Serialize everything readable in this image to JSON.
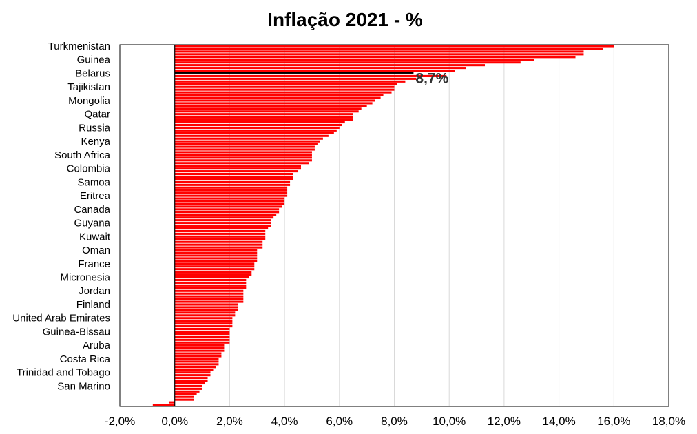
{
  "chart_data": {
    "type": "bar",
    "orientation": "horizontal",
    "title": "Inflação 2021 - %",
    "xlim": [
      -2,
      18
    ],
    "x_ticks": [
      -2,
      0,
      2,
      4,
      6,
      8,
      10,
      12,
      14,
      16,
      18
    ],
    "x_tick_labels": [
      "-2,0%",
      "0,0%",
      "2,0%",
      "4,0%",
      "6,0%",
      "8,0%",
      "10,0%",
      "12,0%",
      "14,0%",
      "16,0%",
      "18,0%"
    ],
    "grid": "vertical",
    "bar_color": "#ff0000",
    "highlight_color": "#000000",
    "highlight_index": 10,
    "annotation": {
      "text": "8,7%",
      "value": 8.7,
      "row_index": 10
    },
    "visible_labels": [
      {
        "index": 0,
        "label": "Turkmenistan"
      },
      {
        "index": 5,
        "label": "Guinea"
      },
      {
        "index": 10,
        "label": "Belarus"
      },
      {
        "index": 15,
        "label": "Tajikistan"
      },
      {
        "index": 20,
        "label": "Mongolia"
      },
      {
        "index": 25,
        "label": "Qatar"
      },
      {
        "index": 30,
        "label": "Russia"
      },
      {
        "index": 35,
        "label": "Kenya"
      },
      {
        "index": 40,
        "label": "South Africa"
      },
      {
        "index": 45,
        "label": "Colombia"
      },
      {
        "index": 50,
        "label": "Samoa"
      },
      {
        "index": 55,
        "label": "Eritrea"
      },
      {
        "index": 60,
        "label": "Canada"
      },
      {
        "index": 65,
        "label": "Guyana"
      },
      {
        "index": 70,
        "label": "Kuwait"
      },
      {
        "index": 75,
        "label": "Oman"
      },
      {
        "index": 80,
        "label": "France"
      },
      {
        "index": 85,
        "label": "Micronesia"
      },
      {
        "index": 90,
        "label": "Jordan"
      },
      {
        "index": 95,
        "label": "Finland"
      },
      {
        "index": 100,
        "label": "United Arab Emirates"
      },
      {
        "index": 105,
        "label": "Guinea-Bissau"
      },
      {
        "index": 110,
        "label": "Aruba"
      },
      {
        "index": 115,
        "label": "Costa Rica"
      },
      {
        "index": 120,
        "label": "Trinidad and Tobago"
      },
      {
        "index": 125,
        "label": "San Marino"
      }
    ],
    "values": [
      16.0,
      15.6,
      14.9,
      14.9,
      14.6,
      13.1,
      12.6,
      11.3,
      10.6,
      10.2,
      8.7,
      9.9,
      8.8,
      8.4,
      8.1,
      8.0,
      8.0,
      7.9,
      7.6,
      7.5,
      7.3,
      7.2,
      7.0,
      6.8,
      6.7,
      6.5,
      6.5,
      6.5,
      6.2,
      6.1,
      6.0,
      5.9,
      5.8,
      5.6,
      5.4,
      5.3,
      5.2,
      5.1,
      5.1,
      5.0,
      5.0,
      5.0,
      5.0,
      4.9,
      4.6,
      4.6,
      4.5,
      4.3,
      4.3,
      4.3,
      4.2,
      4.2,
      4.1,
      4.1,
      4.1,
      4.1,
      4.0,
      4.0,
      4.0,
      3.9,
      3.8,
      3.8,
      3.7,
      3.6,
      3.5,
      3.5,
      3.5,
      3.4,
      3.3,
      3.3,
      3.3,
      3.3,
      3.2,
      3.2,
      3.2,
      3.0,
      3.0,
      3.0,
      3.0,
      3.0,
      2.9,
      2.9,
      2.9,
      2.8,
      2.8,
      2.7,
      2.6,
      2.6,
      2.6,
      2.6,
      2.5,
      2.5,
      2.5,
      2.5,
      2.5,
      2.3,
      2.3,
      2.3,
      2.2,
      2.2,
      2.1,
      2.1,
      2.1,
      2.1,
      2.0,
      2.0,
      2.0,
      2.0,
      2.0,
      2.0,
      1.8,
      1.8,
      1.8,
      1.7,
      1.7,
      1.6,
      1.6,
      1.6,
      1.5,
      1.4,
      1.3,
      1.3,
      1.2,
      1.2,
      1.1,
      1.0,
      1.0,
      0.9,
      0.8,
      0.7,
      0.7,
      -0.2,
      -0.8
    ]
  }
}
